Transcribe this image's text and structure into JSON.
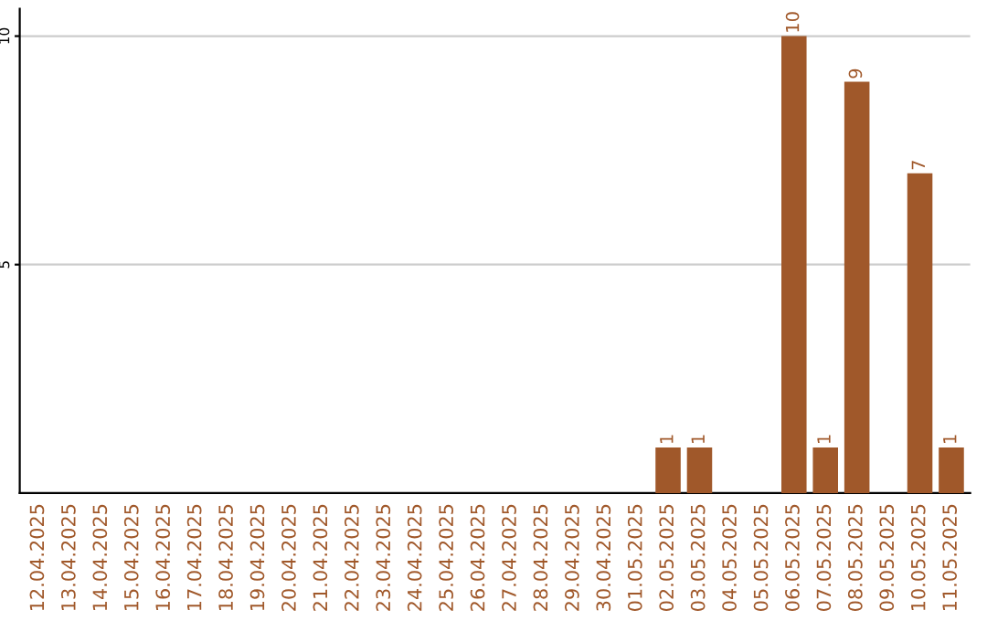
{
  "chart_data": {
    "type": "bar",
    "categories": [
      "12.04.2025",
      "13.04.2025",
      "14.04.2025",
      "15.04.2025",
      "16.04.2025",
      "17.04.2025",
      "18.04.2025",
      "19.04.2025",
      "20.04.2025",
      "21.04.2025",
      "22.04.2025",
      "23.04.2025",
      "24.04.2025",
      "25.04.2025",
      "26.04.2025",
      "27.04.2025",
      "28.04.2025",
      "29.04.2025",
      "30.04.2025",
      "01.05.2025",
      "02.05.2025",
      "03.05.2025",
      "04.05.2025",
      "05.05.2025",
      "06.05.2025",
      "07.05.2025",
      "08.05.2025",
      "09.05.2025",
      "10.05.2025",
      "11.05.2025"
    ],
    "values": [
      0,
      0,
      0,
      0,
      0,
      0,
      0,
      0,
      0,
      0,
      0,
      0,
      0,
      0,
      0,
      0,
      0,
      0,
      0,
      0,
      1,
      1,
      0,
      0,
      10,
      1,
      9,
      0,
      7,
      1
    ],
    "value_labels": [
      null,
      null,
      null,
      null,
      null,
      null,
      null,
      null,
      null,
      null,
      null,
      null,
      null,
      null,
      null,
      null,
      null,
      null,
      null,
      null,
      "1",
      "1",
      null,
      null,
      "10",
      "1",
      "9",
      null,
      "7",
      "1"
    ],
    "color": "#a0582a",
    "ylim": [
      0,
      10.6
    ],
    "yticks": [
      5,
      10
    ],
    "grid": "y"
  }
}
